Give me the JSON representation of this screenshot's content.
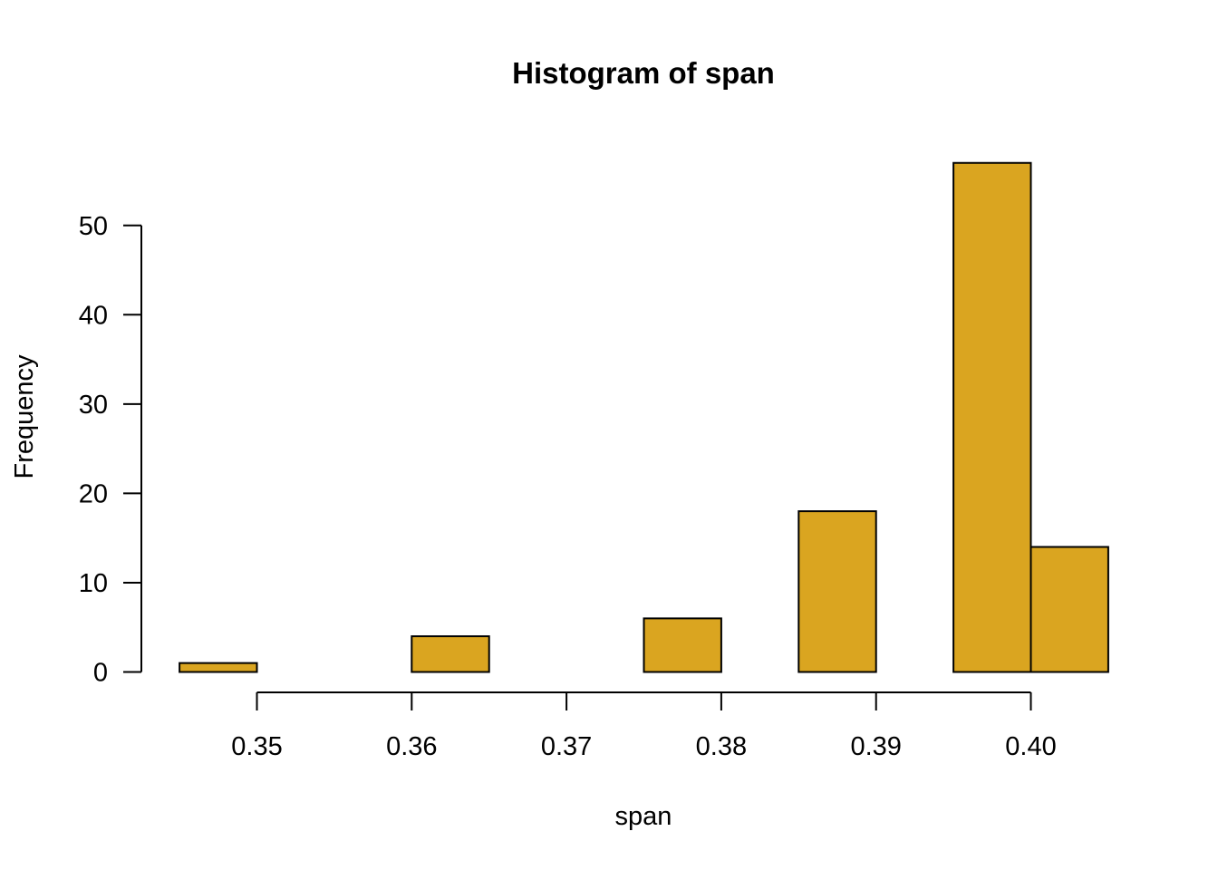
{
  "chart_data": {
    "type": "bar",
    "title": "Histogram of span",
    "xlabel": "span",
    "ylabel": "Frequency",
    "bin_edges": [
      0.345,
      0.35,
      0.355,
      0.36,
      0.365,
      0.37,
      0.375,
      0.38,
      0.385,
      0.39,
      0.395,
      0.4,
      0.405
    ],
    "values": [
      1,
      0,
      0,
      4,
      0,
      0,
      6,
      0,
      18,
      0,
      57,
      14
    ],
    "xlim": [
      0.345,
      0.405
    ],
    "ylim": [
      0,
      57
    ],
    "x_ticks": [
      0.35,
      0.36,
      0.37,
      0.38,
      0.39,
      0.4
    ],
    "x_tick_labels": [
      "0.35",
      "0.36",
      "0.37",
      "0.38",
      "0.39",
      "0.40"
    ],
    "y_ticks": [
      0,
      10,
      20,
      30,
      40,
      50
    ],
    "y_tick_labels": [
      "0",
      "10",
      "20",
      "30",
      "40",
      "50"
    ],
    "grid": false,
    "legend": "none",
    "bar_color": "#DAA520",
    "border_color": "#000000"
  }
}
